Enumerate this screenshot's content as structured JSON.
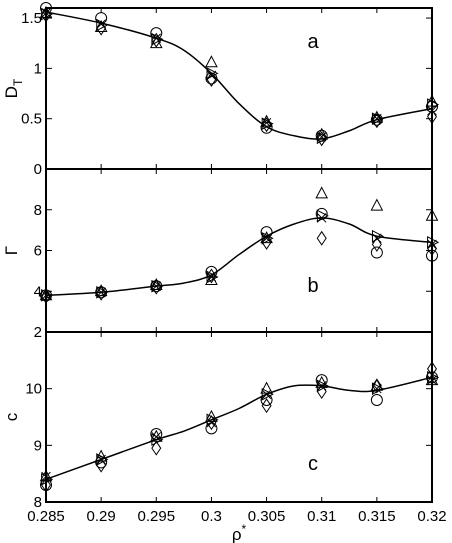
{
  "chart_data": [
    {
      "type": "scatter",
      "panel_label": "a",
      "ylabel": "D",
      "ylabel_sub": "T",
      "xlim": [
        0.285,
        0.32
      ],
      "ylim": [
        0,
        1.6
      ],
      "yticks": [
        0,
        0.5,
        1,
        1.5
      ],
      "ytick_labels": [
        "0",
        "0.5",
        "1",
        "1.5"
      ],
      "curve": {
        "x": [
          0.285,
          0.29,
          0.295,
          0.2975,
          0.3,
          0.3025,
          0.305,
          0.3075,
          0.31,
          0.3125,
          0.315,
          0.32
        ],
        "y": [
          1.56,
          1.45,
          1.3,
          1.18,
          0.95,
          0.65,
          0.42,
          0.33,
          0.3,
          0.38,
          0.49,
          0.6
        ]
      },
      "series": [
        {
          "marker": "circle",
          "x": [
            0.285,
            0.29,
            0.295,
            0.3,
            0.305,
            0.31,
            0.315,
            0.32
          ],
          "y": [
            1.6,
            1.5,
            1.35,
            0.9,
            0.41,
            0.33,
            0.49,
            0.62
          ]
        },
        {
          "marker": "triangle-up",
          "x": [
            0.285,
            0.29,
            0.295,
            0.3,
            0.305,
            0.31,
            0.315,
            0.32
          ],
          "y": [
            1.55,
            1.41,
            1.25,
            1.06,
            0.47,
            0.34,
            0.51,
            0.67
          ]
        },
        {
          "marker": "triangle-right",
          "x": [
            0.285,
            0.29,
            0.295,
            0.3,
            0.305,
            0.31,
            0.315,
            0.32
          ],
          "y": [
            1.54,
            1.43,
            1.29,
            0.95,
            0.45,
            0.31,
            0.5,
            0.64
          ]
        },
        {
          "marker": "diamond",
          "x": [
            0.285,
            0.29,
            0.295,
            0.3,
            0.305,
            0.31,
            0.315,
            0.32
          ],
          "y": [
            1.53,
            1.4,
            1.28,
            0.89,
            0.44,
            0.3,
            0.48,
            0.52
          ]
        },
        {
          "marker": "x",
          "x": [
            0.285,
            0.29,
            0.295,
            0.3,
            0.305,
            0.31,
            0.315,
            0.32
          ],
          "y": [
            1.55,
            1.44,
            1.3,
            0.93,
            0.46,
            0.32,
            0.5,
            0.58
          ]
        }
      ]
    },
    {
      "type": "scatter",
      "panel_label": "b",
      "ylabel": "Γ",
      "xlim": [
        0.285,
        0.32
      ],
      "ylim": [
        2,
        10
      ],
      "yticks": [
        2,
        4,
        6,
        8
      ],
      "ytick_labels": [
        "2",
        "4",
        "6",
        "8"
      ],
      "curve": {
        "x": [
          0.285,
          0.29,
          0.295,
          0.2975,
          0.3,
          0.3025,
          0.305,
          0.3075,
          0.31,
          0.3125,
          0.315,
          0.32
        ],
        "y": [
          3.8,
          3.95,
          4.25,
          4.4,
          4.8,
          5.8,
          6.7,
          7.3,
          7.6,
          7.3,
          6.7,
          6.4
        ]
      },
      "series": [
        {
          "marker": "circle",
          "x": [
            0.285,
            0.29,
            0.295,
            0.3,
            0.305,
            0.31,
            0.315,
            0.32
          ],
          "y": [
            3.8,
            3.95,
            4.25,
            4.95,
            6.9,
            7.8,
            5.9,
            5.75
          ]
        },
        {
          "marker": "triangle-up",
          "x": [
            0.285,
            0.29,
            0.295,
            0.3,
            0.305,
            0.31,
            0.315,
            0.32
          ],
          "y": [
            3.8,
            4.0,
            4.3,
            4.55,
            6.6,
            8.8,
            8.2,
            7.7
          ]
        },
        {
          "marker": "triangle-right",
          "x": [
            0.285,
            0.29,
            0.295,
            0.3,
            0.305,
            0.31,
            0.315,
            0.32
          ],
          "y": [
            3.8,
            3.95,
            4.25,
            4.7,
            6.6,
            7.7,
            6.7,
            6.4
          ]
        },
        {
          "marker": "diamond",
          "x": [
            0.285,
            0.29,
            0.295,
            0.3,
            0.305,
            0.31,
            0.315,
            0.32
          ],
          "y": [
            3.75,
            3.9,
            4.2,
            4.75,
            6.4,
            6.6,
            6.3,
            6.1
          ]
        },
        {
          "marker": "x",
          "x": [
            0.285,
            0.29,
            0.295,
            0.3,
            0.305,
            0.31,
            0.315,
            0.32
          ],
          "y": [
            3.8,
            3.95,
            4.25,
            4.7,
            6.6,
            7.6,
            6.6,
            6.3
          ]
        }
      ]
    },
    {
      "type": "scatter",
      "panel_label": "c",
      "ylabel": "c",
      "xlabel": "ρ",
      "xlabel_sup": "*",
      "xlim": [
        0.285,
        0.32
      ],
      "ylim": [
        8,
        11
      ],
      "xticks": [
        0.285,
        0.29,
        0.295,
        0.3,
        0.305,
        0.31,
        0.315,
        0.32
      ],
      "xtick_labels": [
        "0.285",
        "0.29",
        "0.295",
        "0.3",
        "0.305",
        "0.31",
        "0.315",
        "0.32"
      ],
      "yticks": [
        8,
        9,
        10
      ],
      "ytick_labels": [
        "8",
        "9",
        "10"
      ],
      "curve": {
        "x": [
          0.285,
          0.29,
          0.295,
          0.2975,
          0.3,
          0.3025,
          0.305,
          0.3075,
          0.31,
          0.3125,
          0.315,
          0.32
        ],
        "y": [
          8.4,
          8.75,
          9.1,
          9.25,
          9.45,
          9.65,
          9.9,
          10.05,
          10.05,
          9.97,
          9.97,
          10.2
        ]
      },
      "series": [
        {
          "marker": "circle",
          "x": [
            0.285,
            0.29,
            0.295,
            0.3,
            0.305,
            0.31,
            0.315,
            0.32
          ],
          "y": [
            8.3,
            8.7,
            9.2,
            9.3,
            9.8,
            10.15,
            9.8,
            10.2
          ]
        },
        {
          "marker": "triangle-up",
          "x": [
            0.285,
            0.29,
            0.295,
            0.3,
            0.305,
            0.31,
            0.315,
            0.32
          ],
          "y": [
            8.45,
            8.8,
            9.15,
            9.5,
            10.0,
            10.1,
            10.05,
            10.15
          ]
        },
        {
          "marker": "triangle-right",
          "x": [
            0.285,
            0.29,
            0.295,
            0.3,
            0.305,
            0.31,
            0.315,
            0.32
          ],
          "y": [
            8.4,
            8.75,
            9.1,
            9.45,
            9.9,
            10.05,
            10.0,
            10.2
          ]
        },
        {
          "marker": "diamond",
          "x": [
            0.285,
            0.29,
            0.295,
            0.3,
            0.305,
            0.31,
            0.315,
            0.32
          ],
          "y": [
            8.3,
            8.65,
            8.95,
            9.4,
            9.7,
            9.95,
            10.05,
            10.35
          ]
        },
        {
          "marker": "x",
          "x": [
            0.285,
            0.29,
            0.295,
            0.3,
            0.305,
            0.31,
            0.315,
            0.32
          ],
          "y": [
            8.45,
            8.75,
            9.15,
            9.4,
            9.9,
            10.05,
            10.0,
            10.15
          ]
        }
      ]
    }
  ]
}
